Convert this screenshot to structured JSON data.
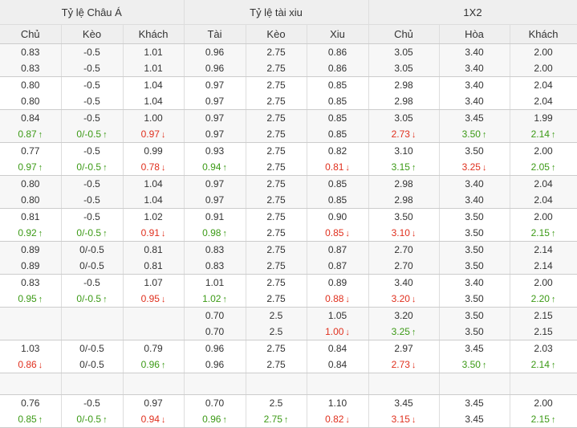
{
  "groups": [
    "Tỷ lệ Châu Á",
    "Tỷ lệ tài xiu",
    "1X2"
  ],
  "columns": [
    "Chủ",
    "Kèo",
    "Khách",
    "Tài",
    "Kèo",
    "Xiu",
    "Chủ",
    "Hòa",
    "Khách"
  ],
  "colors": {
    "up": "#3c9a16",
    "down": "#e0301e",
    "header_bg": "#efefef",
    "alt_bg": "#f7f7f7"
  },
  "blocks": [
    {
      "rows": [
        [
          [
            "0.83",
            ""
          ],
          [
            "-0.5",
            ""
          ],
          [
            "1.01",
            ""
          ],
          [
            "0.96",
            ""
          ],
          [
            "2.75",
            ""
          ],
          [
            "0.86",
            ""
          ],
          [
            "3.05",
            ""
          ],
          [
            "3.40",
            ""
          ],
          [
            "2.00",
            ""
          ]
        ],
        [
          [
            "0.83",
            ""
          ],
          [
            "-0.5",
            ""
          ],
          [
            "1.01",
            ""
          ],
          [
            "0.96",
            ""
          ],
          [
            "2.75",
            ""
          ],
          [
            "0.86",
            ""
          ],
          [
            "3.05",
            ""
          ],
          [
            "3.40",
            ""
          ],
          [
            "2.00",
            ""
          ]
        ]
      ]
    },
    {
      "rows": [
        [
          [
            "0.80",
            ""
          ],
          [
            "-0.5",
            ""
          ],
          [
            "1.04",
            ""
          ],
          [
            "0.97",
            ""
          ],
          [
            "2.75",
            ""
          ],
          [
            "0.85",
            ""
          ],
          [
            "2.98",
            ""
          ],
          [
            "3.40",
            ""
          ],
          [
            "2.04",
            ""
          ]
        ],
        [
          [
            "0.80",
            ""
          ],
          [
            "-0.5",
            ""
          ],
          [
            "1.04",
            ""
          ],
          [
            "0.97",
            ""
          ],
          [
            "2.75",
            ""
          ],
          [
            "0.85",
            ""
          ],
          [
            "2.98",
            ""
          ],
          [
            "3.40",
            ""
          ],
          [
            "2.04",
            ""
          ]
        ]
      ]
    },
    {
      "rows": [
        [
          [
            "0.84",
            ""
          ],
          [
            "-0.5",
            ""
          ],
          [
            "1.00",
            ""
          ],
          [
            "0.97",
            ""
          ],
          [
            "2.75",
            ""
          ],
          [
            "0.85",
            ""
          ],
          [
            "3.05",
            ""
          ],
          [
            "3.45",
            ""
          ],
          [
            "1.99",
            ""
          ]
        ],
        [
          [
            "0.87",
            "up"
          ],
          [
            "0/-0.5",
            "up"
          ],
          [
            "0.97",
            "down"
          ],
          [
            "0.97",
            ""
          ],
          [
            "2.75",
            ""
          ],
          [
            "0.85",
            ""
          ],
          [
            "2.73",
            "down"
          ],
          [
            "3.50",
            "up"
          ],
          [
            "2.14",
            "up"
          ]
        ]
      ]
    },
    {
      "rows": [
        [
          [
            "0.77",
            ""
          ],
          [
            "-0.5",
            ""
          ],
          [
            "0.99",
            ""
          ],
          [
            "0.93",
            ""
          ],
          [
            "2.75",
            ""
          ],
          [
            "0.82",
            ""
          ],
          [
            "3.10",
            ""
          ],
          [
            "3.50",
            ""
          ],
          [
            "2.00",
            ""
          ]
        ],
        [
          [
            "0.97",
            "up"
          ],
          [
            "0/-0.5",
            "up"
          ],
          [
            "0.78",
            "down"
          ],
          [
            "0.94",
            "up"
          ],
          [
            "2.75",
            ""
          ],
          [
            "0.81",
            "down"
          ],
          [
            "3.15",
            "up"
          ],
          [
            "3.25",
            "down"
          ],
          [
            "2.05",
            "up"
          ]
        ]
      ]
    },
    {
      "rows": [
        [
          [
            "0.80",
            ""
          ],
          [
            "-0.5",
            ""
          ],
          [
            "1.04",
            ""
          ],
          [
            "0.97",
            ""
          ],
          [
            "2.75",
            ""
          ],
          [
            "0.85",
            ""
          ],
          [
            "2.98",
            ""
          ],
          [
            "3.40",
            ""
          ],
          [
            "2.04",
            ""
          ]
        ],
        [
          [
            "0.80",
            ""
          ],
          [
            "-0.5",
            ""
          ],
          [
            "1.04",
            ""
          ],
          [
            "0.97",
            ""
          ],
          [
            "2.75",
            ""
          ],
          [
            "0.85",
            ""
          ],
          [
            "2.98",
            ""
          ],
          [
            "3.40",
            ""
          ],
          [
            "2.04",
            ""
          ]
        ]
      ]
    },
    {
      "rows": [
        [
          [
            "0.81",
            ""
          ],
          [
            "-0.5",
            ""
          ],
          [
            "1.02",
            ""
          ],
          [
            "0.91",
            ""
          ],
          [
            "2.75",
            ""
          ],
          [
            "0.90",
            ""
          ],
          [
            "3.50",
            ""
          ],
          [
            "3.50",
            ""
          ],
          [
            "2.00",
            ""
          ]
        ],
        [
          [
            "0.92",
            "up"
          ],
          [
            "0/-0.5",
            "up"
          ],
          [
            "0.91",
            "down"
          ],
          [
            "0.98",
            "up"
          ],
          [
            "2.75",
            ""
          ],
          [
            "0.85",
            "down"
          ],
          [
            "3.10",
            "down"
          ],
          [
            "3.50",
            ""
          ],
          [
            "2.15",
            "up"
          ]
        ]
      ]
    },
    {
      "rows": [
        [
          [
            "0.89",
            ""
          ],
          [
            "0/-0.5",
            ""
          ],
          [
            "0.81",
            ""
          ],
          [
            "0.83",
            ""
          ],
          [
            "2.75",
            ""
          ],
          [
            "0.87",
            ""
          ],
          [
            "2.70",
            ""
          ],
          [
            "3.50",
            ""
          ],
          [
            "2.14",
            ""
          ]
        ],
        [
          [
            "0.89",
            ""
          ],
          [
            "0/-0.5",
            ""
          ],
          [
            "0.81",
            ""
          ],
          [
            "0.83",
            ""
          ],
          [
            "2.75",
            ""
          ],
          [
            "0.87",
            ""
          ],
          [
            "2.70",
            ""
          ],
          [
            "3.50",
            ""
          ],
          [
            "2.14",
            ""
          ]
        ]
      ]
    },
    {
      "rows": [
        [
          [
            "0.83",
            ""
          ],
          [
            "-0.5",
            ""
          ],
          [
            "1.07",
            ""
          ],
          [
            "1.01",
            ""
          ],
          [
            "2.75",
            ""
          ],
          [
            "0.89",
            ""
          ],
          [
            "3.40",
            ""
          ],
          [
            "3.40",
            ""
          ],
          [
            "2.00",
            ""
          ]
        ],
        [
          [
            "0.95",
            "up"
          ],
          [
            "0/-0.5",
            "up"
          ],
          [
            "0.95",
            "down"
          ],
          [
            "1.02",
            "up"
          ],
          [
            "2.75",
            ""
          ],
          [
            "0.88",
            "down"
          ],
          [
            "3.20",
            "down"
          ],
          [
            "3.50",
            ""
          ],
          [
            "2.20",
            "up"
          ]
        ]
      ]
    },
    {
      "rows": [
        [
          [
            "",
            ""
          ],
          [
            "",
            ""
          ],
          [
            "",
            ""
          ],
          [
            "0.70",
            ""
          ],
          [
            "2.5",
            ""
          ],
          [
            "1.05",
            ""
          ],
          [
            "3.20",
            ""
          ],
          [
            "3.50",
            ""
          ],
          [
            "2.15",
            ""
          ]
        ],
        [
          [
            "",
            ""
          ],
          [
            "",
            ""
          ],
          [
            "",
            ""
          ],
          [
            "0.70",
            ""
          ],
          [
            "2.5",
            ""
          ],
          [
            "1.00",
            "down"
          ],
          [
            "3.25",
            "up"
          ],
          [
            "3.50",
            ""
          ],
          [
            "2.15",
            ""
          ]
        ]
      ]
    },
    {
      "rows": [
        [
          [
            "1.03",
            ""
          ],
          [
            "0/-0.5",
            ""
          ],
          [
            "0.79",
            ""
          ],
          [
            "0.96",
            ""
          ],
          [
            "2.75",
            ""
          ],
          [
            "0.84",
            ""
          ],
          [
            "2.97",
            ""
          ],
          [
            "3.45",
            ""
          ],
          [
            "2.03",
            ""
          ]
        ],
        [
          [
            "0.86",
            "down"
          ],
          [
            "0/-0.5",
            ""
          ],
          [
            "0.96",
            "up"
          ],
          [
            "0.96",
            ""
          ],
          [
            "2.75",
            ""
          ],
          [
            "0.84",
            ""
          ],
          [
            "2.73",
            "down"
          ],
          [
            "3.50",
            "up"
          ],
          [
            "2.14",
            "up"
          ]
        ]
      ]
    },
    {
      "rows": []
    },
    {
      "rows": [
        [
          [
            "0.76",
            ""
          ],
          [
            "-0.5",
            ""
          ],
          [
            "0.97",
            ""
          ],
          [
            "0.70",
            ""
          ],
          [
            "2.5",
            ""
          ],
          [
            "1.10",
            ""
          ],
          [
            "3.45",
            ""
          ],
          [
            "3.45",
            ""
          ],
          [
            "2.00",
            ""
          ]
        ],
        [
          [
            "0.85",
            "up"
          ],
          [
            "0/-0.5",
            "up"
          ],
          [
            "0.94",
            "down"
          ],
          [
            "0.96",
            "up"
          ],
          [
            "2.75",
            "up"
          ],
          [
            "0.82",
            "down"
          ],
          [
            "3.15",
            "down"
          ],
          [
            "3.45",
            ""
          ],
          [
            "2.15",
            "up"
          ]
        ]
      ]
    }
  ]
}
